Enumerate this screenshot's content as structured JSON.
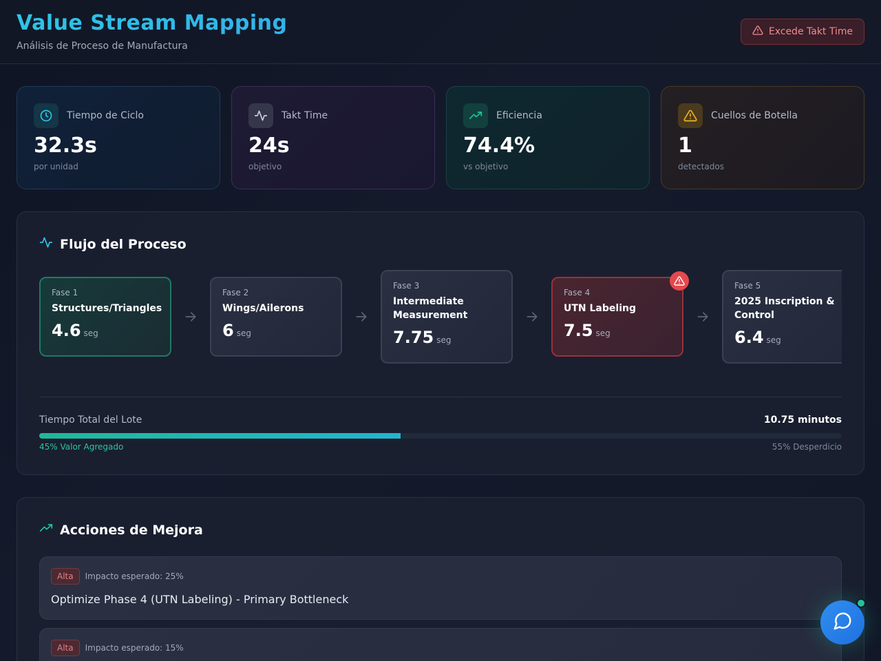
{
  "header": {
    "title": "Value Stream Mapping",
    "subtitle": "Análisis de Proceso de Manufactura",
    "alert_label": "Excede Takt Time"
  },
  "stats": [
    {
      "icon": "clock-icon",
      "label": "Tiempo de Ciclo",
      "value": "32.3s",
      "note": "por unidad",
      "color": "#2ec4e6"
    },
    {
      "icon": "activity-icon",
      "label": "Takt Time",
      "value": "24s",
      "note": "objetivo",
      "color": "#c9cdd8"
    },
    {
      "icon": "trending-up-icon",
      "label": "Eficiencia",
      "value": "74.4%",
      "note": "vs objetivo",
      "color": "#1fc49a"
    },
    {
      "icon": "warning-icon",
      "label": "Cuellos de Botella",
      "value": "1",
      "note": "detectados",
      "color": "#f0b429"
    }
  ],
  "flow": {
    "title": "Flujo del Proceso",
    "phases": [
      {
        "num": "Fase 1",
        "name": "Structures/Triangles",
        "time": "4.6",
        "unit": "seg",
        "status": "ok"
      },
      {
        "num": "Fase 2",
        "name": "Wings/Ailerons",
        "time": "6",
        "unit": "seg",
        "status": "normal"
      },
      {
        "num": "Fase 3",
        "name": "Intermediate Measurement",
        "time": "7.75",
        "unit": "seg",
        "status": "normal"
      },
      {
        "num": "Fase 4",
        "name": "UTN Labeling",
        "time": "7.5",
        "unit": "seg",
        "status": "bottleneck"
      },
      {
        "num": "Fase 5",
        "name": "2025 Inscription & Control",
        "time": "6.4",
        "unit": "seg",
        "status": "normal"
      }
    ],
    "total_label": "Tiempo Total del Lote",
    "total_value": "10.75 minutos",
    "value_added_percent": 45,
    "value_added_label": "45% Valor Agregado",
    "waste_label": "55% Desperdicio"
  },
  "actions": {
    "title": "Acciones de Mejora",
    "items": [
      {
        "priority": "Alta",
        "impact": "Impacto esperado: 25%",
        "title": "Optimize Phase 4 (UTN Labeling) - Primary Bottleneck"
      },
      {
        "priority": "Alta",
        "impact": "Impacto esperado: 15%",
        "title": ""
      }
    ]
  },
  "chat": {
    "icon": "chat-bubble-icon"
  }
}
